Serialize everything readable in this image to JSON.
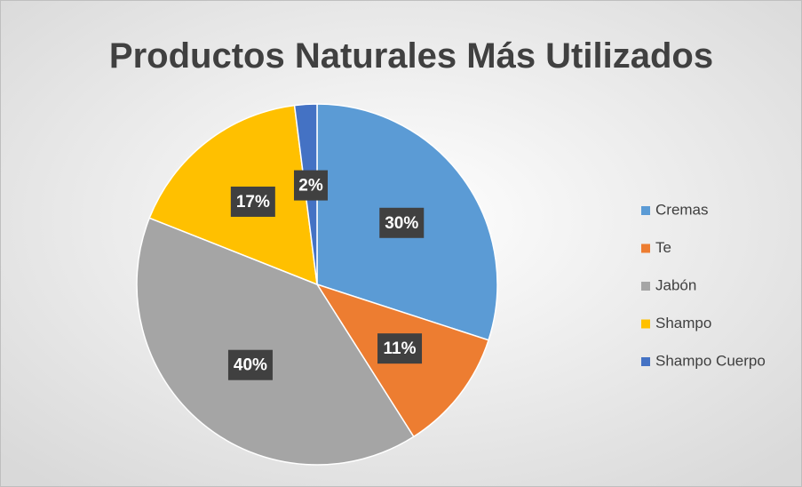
{
  "chart_data": {
    "type": "pie",
    "title": "Productos Naturales Más Utilizados",
    "categories": [
      "Cremas",
      "Te",
      "Jabón",
      "Shampo",
      "Shampo Cuerpo"
    ],
    "values": [
      30,
      11,
      40,
      17,
      2
    ],
    "value_labels": [
      "30%",
      "11%",
      "40%",
      "17%",
      "2%"
    ],
    "colors": [
      "#5b9bd5",
      "#ed7d31",
      "#a5a5a5",
      "#ffc000",
      "#4472c4"
    ],
    "legend": "right"
  }
}
